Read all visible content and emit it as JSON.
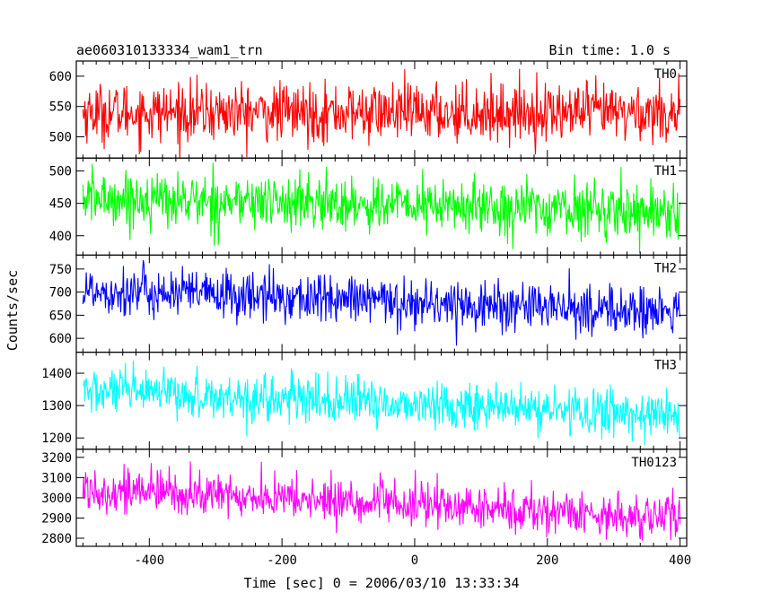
{
  "chart_data": {
    "type": "line",
    "title": "ae060310133334_wam1_trn",
    "subtitle": "Bin time: 1.0 s",
    "xlabel": "Time [sec] 0 = 2006/03/10 13:33:34",
    "ylabel": "Counts/sec",
    "xlim": [
      -510,
      410
    ],
    "x_ticks": [
      -400,
      -200,
      0,
      200,
      400
    ],
    "x_range": [
      -500,
      400
    ],
    "bin_time": 1.0,
    "grid": false,
    "panels": [
      {
        "name": "TH0",
        "color": "#ff0000",
        "ylim": [
          465,
          625
        ],
        "y_ticks": [
          500,
          550,
          600
        ],
        "mean_start": 540,
        "mean_end": 540,
        "noise": 24,
        "noise_max": 85
      },
      {
        "name": "TH1",
        "color": "#00ff00",
        "ylim": [
          370,
          520
        ],
        "y_ticks": [
          400,
          450,
          500
        ],
        "mean_start": 458,
        "mean_end": 438,
        "noise": 21,
        "noise_max": 80
      },
      {
        "name": "TH2",
        "color": "#0000ff",
        "ylim": [
          570,
          780
        ],
        "y_ticks": [
          600,
          650,
          700,
          750
        ],
        "mean_start": 705,
        "mean_end": 655,
        "noise": 27,
        "noise_max": 100
      },
      {
        "name": "TH3",
        "color": "#00ffff",
        "ylim": [
          1165,
          1465
        ],
        "y_ticks": [
          1200,
          1300,
          1400
        ],
        "mean_start": 1345,
        "mean_end": 1270,
        "noise": 36,
        "noise_max": 140
      },
      {
        "name": "TH0123",
        "color": "#ff00ff",
        "ylim": [
          2760,
          3240
        ],
        "y_ticks": [
          2800,
          2900,
          3000,
          3100,
          3200
        ],
        "mean_start": 3045,
        "mean_end": 2900,
        "noise": 55,
        "noise_max": 200
      }
    ]
  }
}
